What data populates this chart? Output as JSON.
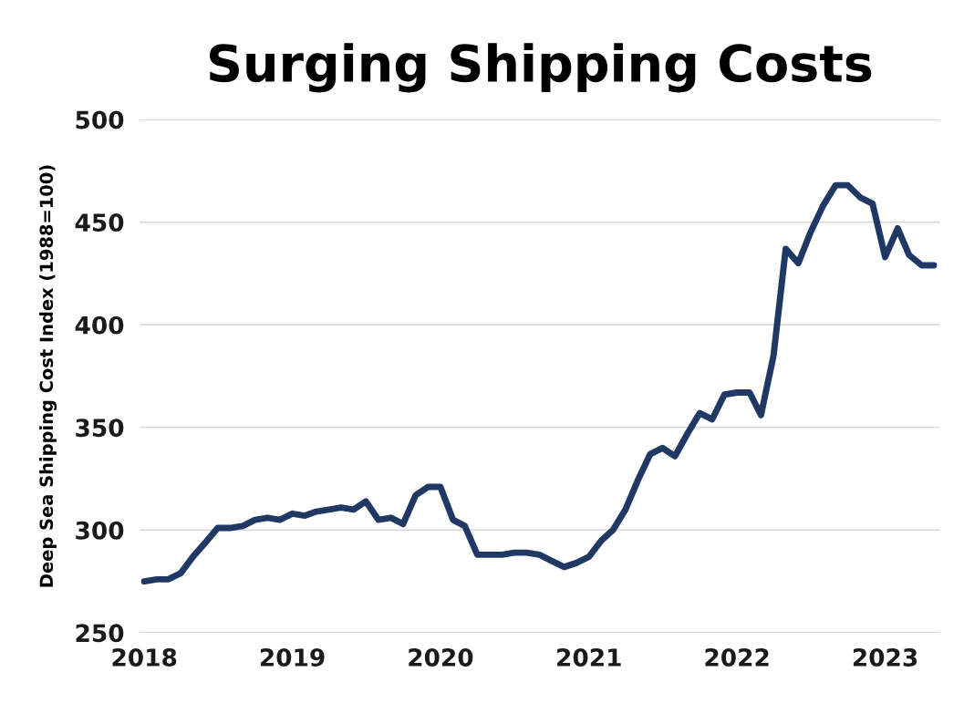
{
  "chart_data": {
    "type": "line",
    "title": "Surging Shipping Costs",
    "ylabel": "Deep Sea Shipping Cost Index (1988=100)",
    "x": [
      "2018-01",
      "2018-02",
      "2018-03",
      "2018-04",
      "2018-05",
      "2018-06",
      "2018-07",
      "2018-08",
      "2018-09",
      "2018-10",
      "2018-11",
      "2018-12",
      "2019-01",
      "2019-02",
      "2019-03",
      "2019-04",
      "2019-05",
      "2019-06",
      "2019-07",
      "2019-08",
      "2019-09",
      "2019-10",
      "2019-11",
      "2019-12",
      "2020-01",
      "2020-02",
      "2020-03",
      "2020-04",
      "2020-05",
      "2020-06",
      "2020-07",
      "2020-08",
      "2020-09",
      "2020-10",
      "2020-11",
      "2020-12",
      "2021-01",
      "2021-02",
      "2021-03",
      "2021-04",
      "2021-05",
      "2021-06",
      "2021-07",
      "2021-08",
      "2021-09",
      "2021-10",
      "2021-11",
      "2021-12",
      "2022-01",
      "2022-02",
      "2022-03",
      "2022-04",
      "2022-05",
      "2022-06",
      "2022-07",
      "2022-08",
      "2022-09",
      "2022-10",
      "2022-11",
      "2022-12",
      "2023-01",
      "2023-02",
      "2023-03",
      "2023-04",
      "2023-05"
    ],
    "series": [
      {
        "color": "#1f3864",
        "values": [
          275,
          276,
          276,
          279,
          287,
          294,
          301,
          301,
          302,
          305,
          306,
          305,
          308,
          307,
          309,
          310,
          311,
          310,
          314,
          305,
          306,
          303,
          317,
          321,
          321,
          305,
          302,
          288,
          288,
          288,
          289,
          289,
          288,
          285,
          282,
          284,
          287,
          295,
          300,
          310,
          324,
          337,
          340,
          336,
          347,
          357,
          354,
          366,
          367,
          367,
          356,
          385,
          437,
          430,
          445,
          458,
          468,
          468,
          462,
          459,
          433,
          447,
          434,
          429,
          429
        ]
      }
    ],
    "xlim": [
      "2017-12-21",
      "2023-05-16"
    ],
    "xticks": [
      {
        "value": "2018",
        "label": "2018"
      },
      {
        "value": "2019",
        "label": "2019"
      },
      {
        "value": "2020",
        "label": "2020"
      },
      {
        "value": "2021",
        "label": "2021"
      },
      {
        "value": "2022",
        "label": "2022"
      },
      {
        "value": "2023",
        "label": "2023"
      }
    ],
    "ylim": [
      250,
      500
    ],
    "yticks": [
      250,
      300,
      350,
      400,
      450,
      500
    ],
    "grid": "y"
  }
}
